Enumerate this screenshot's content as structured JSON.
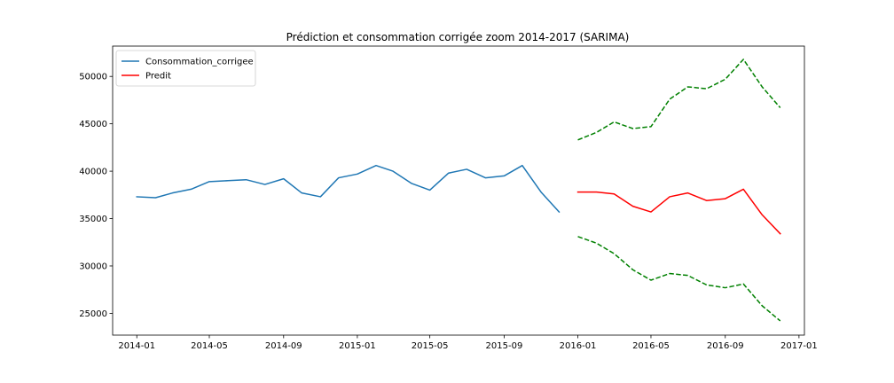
{
  "chart_data": {
    "type": "line",
    "title": "Prédiction et consommation corrigée zoom 2014-2017 (SARIMA)",
    "xlabel": "",
    "ylabel": "",
    "xlim": [
      "2013-11-22",
      "2017-01-10"
    ],
    "ylim": [
      22700,
      53200
    ],
    "grid": false,
    "legend_position": "upper-left",
    "x_ticks": [
      {
        "date": "2014-01-01",
        "label": "2014-01"
      },
      {
        "date": "2014-05-01",
        "label": "2014-05"
      },
      {
        "date": "2014-09-01",
        "label": "2014-09"
      },
      {
        "date": "2015-01-01",
        "label": "2015-01"
      },
      {
        "date": "2015-05-01",
        "label": "2015-05"
      },
      {
        "date": "2015-09-01",
        "label": "2015-09"
      },
      {
        "date": "2016-01-01",
        "label": "2016-01"
      },
      {
        "date": "2016-05-01",
        "label": "2016-05"
      },
      {
        "date": "2016-09-01",
        "label": "2016-09"
      },
      {
        "date": "2017-01-01",
        "label": "2017-01"
      }
    ],
    "y_ticks": [
      {
        "value": 25000,
        "label": "25000"
      },
      {
        "value": 30000,
        "label": "30000"
      },
      {
        "value": 35000,
        "label": "35000"
      },
      {
        "value": 40000,
        "label": "40000"
      },
      {
        "value": 45000,
        "label": "45000"
      },
      {
        "value": 50000,
        "label": "50000"
      }
    ],
    "series": [
      {
        "name": "Consommation_corrigee",
        "color": "#1f77b4",
        "style": "solid",
        "in_legend": true,
        "x": [
          "2014-01-01",
          "2014-02-01",
          "2014-03-01",
          "2014-04-01",
          "2014-05-01",
          "2014-06-01",
          "2014-07-01",
          "2014-08-01",
          "2014-09-01",
          "2014-10-01",
          "2014-11-01",
          "2014-12-01",
          "2015-01-01",
          "2015-02-01",
          "2015-03-01",
          "2015-04-01",
          "2015-05-01",
          "2015-06-01",
          "2015-07-01",
          "2015-08-01",
          "2015-09-01",
          "2015-10-01",
          "2015-11-01",
          "2015-12-01"
        ],
        "values": [
          37300,
          37200,
          37700,
          38100,
          38900,
          39000,
          39100,
          38600,
          39200,
          37700,
          37300,
          39300,
          39700,
          40600,
          40000,
          38700,
          38000,
          39800,
          40200,
          39300,
          39500,
          40600,
          37800,
          35700
        ]
      },
      {
        "name": "Predit",
        "color": "#ff0000",
        "style": "solid",
        "in_legend": true,
        "x": [
          "2016-01-01",
          "2016-02-01",
          "2016-03-01",
          "2016-04-01",
          "2016-05-01",
          "2016-06-01",
          "2016-07-01",
          "2016-08-01",
          "2016-09-01",
          "2016-10-01",
          "2016-11-01",
          "2016-12-01"
        ],
        "values": [
          37800,
          37800,
          37600,
          36300,
          35700,
          37300,
          37700,
          36900,
          37100,
          38100,
          35400,
          33400
        ]
      },
      {
        "name": "",
        "color": "#008000",
        "style": "dashed",
        "in_legend": false,
        "x": [
          "2016-01-01",
          "2016-02-01",
          "2016-03-01",
          "2016-04-01",
          "2016-05-01",
          "2016-06-01",
          "2016-07-01",
          "2016-08-01",
          "2016-09-01",
          "2016-10-01",
          "2016-11-01",
          "2016-12-01"
        ],
        "values": [
          43300,
          44100,
          45200,
          44500,
          44700,
          47600,
          48900,
          48700,
          49700,
          51800,
          48900,
          46700
        ]
      },
      {
        "name": "",
        "color": "#008000",
        "style": "dashed",
        "in_legend": false,
        "x": [
          "2016-01-01",
          "2016-02-01",
          "2016-03-01",
          "2016-04-01",
          "2016-05-01",
          "2016-06-01",
          "2016-07-01",
          "2016-08-01",
          "2016-09-01",
          "2016-10-01",
          "2016-11-01",
          "2016-12-01"
        ],
        "values": [
          33100,
          32400,
          31300,
          29600,
          28500,
          29200,
          29000,
          28000,
          27700,
          28100,
          25800,
          24200
        ]
      }
    ]
  }
}
